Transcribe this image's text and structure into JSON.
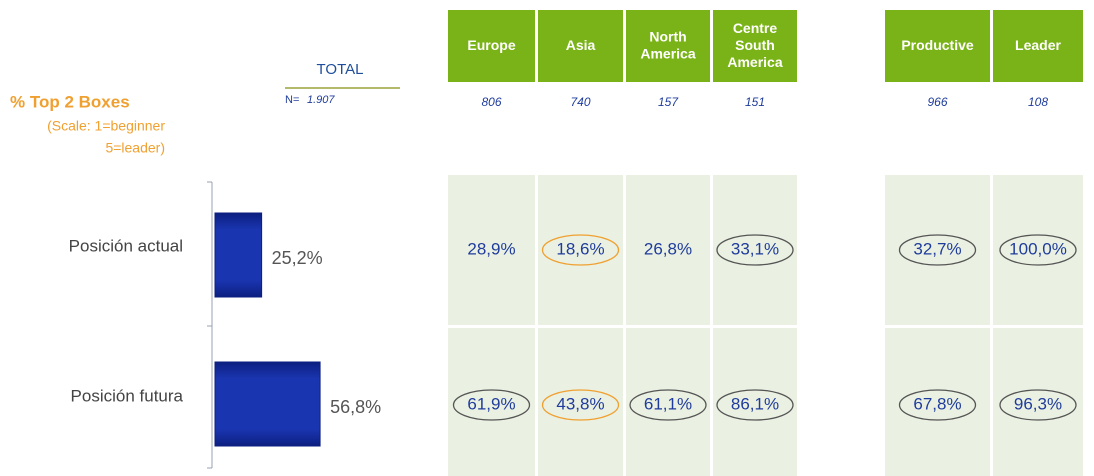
{
  "chart_data": {
    "type": "bar",
    "title": "% Top 2 Boxes",
    "subtitle": [
      "(Scale: 1=beginner",
      "5=leader)"
    ],
    "total_label": "TOTAL",
    "n_label": "N=",
    "n": "1.907",
    "categories": [
      "Posición actual",
      "Posición futura"
    ],
    "values": [
      25.2,
      56.8
    ],
    "value_labels": [
      "25,2%",
      "56,8%"
    ],
    "color": "#1a35b0"
  },
  "table": {
    "columns": [
      "Europe",
      "Asia",
      "North America",
      "Centre South America",
      "Productive",
      "Leader"
    ],
    "n": [
      "806",
      "740",
      "157",
      "151",
      "966",
      "108"
    ],
    "rows": [
      [
        {
          "text": "28,9%",
          "circle": null
        },
        {
          "text": "18,6%",
          "circle": "#f0a030"
        },
        {
          "text": "26,8%",
          "circle": null
        },
        {
          "text": "33,1%",
          "circle": "#555555"
        },
        {
          "text": "32,7%",
          "circle": "#555555"
        },
        {
          "text": "100,0%",
          "circle": "#555555"
        }
      ],
      [
        {
          "text": "61,9%",
          "circle": "#555555"
        },
        {
          "text": "43,8%",
          "circle": "#f0a030"
        },
        {
          "text": "61,1%",
          "circle": "#555555"
        },
        {
          "text": "86,1%",
          "circle": "#555555"
        },
        {
          "text": "67,8%",
          "circle": "#555555"
        },
        {
          "text": "96,3%",
          "circle": "#555555"
        }
      ]
    ]
  }
}
